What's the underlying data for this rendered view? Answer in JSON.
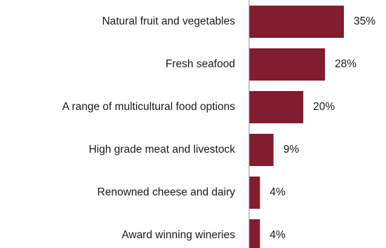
{
  "chart_data": {
    "type": "bar",
    "orientation": "horizontal",
    "title": "",
    "xlabel": "",
    "ylabel": "",
    "categories": [
      "Natural fruit and vegetables",
      "Fresh seafood",
      "A range of multicultural food options",
      "High grade meat and livestock",
      "Renowned  cheese and dairy",
      "Award winning wineries"
    ],
    "values": [
      35,
      28,
      20,
      9,
      4,
      4
    ],
    "value_labels": [
      "35%",
      "28%",
      "20%",
      "9%",
      "4%",
      "4%"
    ],
    "value_unit": "%",
    "xlim": [
      0,
      35
    ],
    "grid": false,
    "legend": "none",
    "bar_color": "#821c2f"
  }
}
